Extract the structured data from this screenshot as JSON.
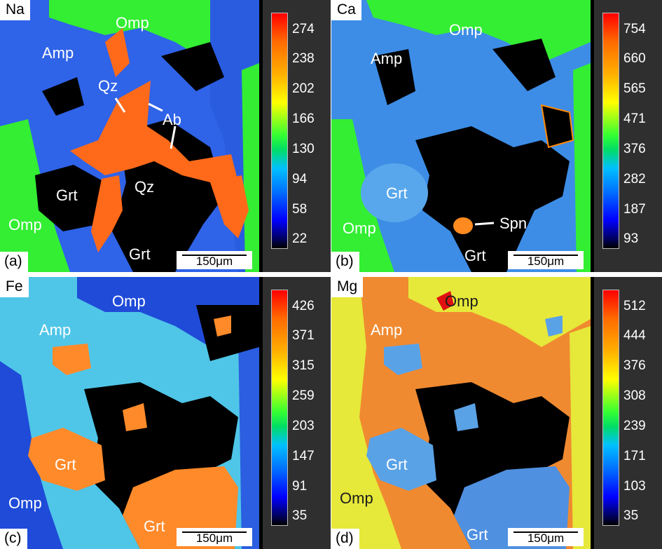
{
  "panels": [
    {
      "element": "Na",
      "label": "(a)",
      "scale": "150μm",
      "ticks": [
        "274",
        "238",
        "202",
        "166",
        "130",
        "94",
        "58",
        "22"
      ],
      "minerals": {
        "omp1": "Omp",
        "amp": "Amp",
        "qz1": "Qz",
        "ab": "Ab",
        "grt1": "Grt",
        "qz2": "Qz",
        "omp2": "Omp",
        "grt2": "Grt"
      }
    },
    {
      "element": "Ca",
      "label": "(b)",
      "scale": "150μm",
      "ticks": [
        "754",
        "660",
        "565",
        "471",
        "376",
        "282",
        "187",
        "93"
      ],
      "minerals": {
        "omp1": "Omp",
        "amp": "Amp",
        "grt1": "Grt",
        "omp2": "Omp",
        "spn": "Spn",
        "grt2": "Grt"
      }
    },
    {
      "element": "Fe",
      "label": "(c)",
      "scale": "150μm",
      "ticks": [
        "426",
        "371",
        "315",
        "259",
        "203",
        "147",
        "91",
        "35"
      ],
      "minerals": {
        "omp1": "Omp",
        "amp": "Amp",
        "grt1": "Grt",
        "omp2": "Omp",
        "grt2": "Grt"
      }
    },
    {
      "element": "Mg",
      "label": "(d)",
      "scale": "150μm",
      "ticks": [
        "512",
        "444",
        "376",
        "308",
        "239",
        "171",
        "103",
        "35"
      ],
      "minerals": {
        "omp1": "Omp",
        "amp": "Amp",
        "grt1": "Grt",
        "omp2": "Omp",
        "grt2": "Grt"
      }
    }
  ]
}
